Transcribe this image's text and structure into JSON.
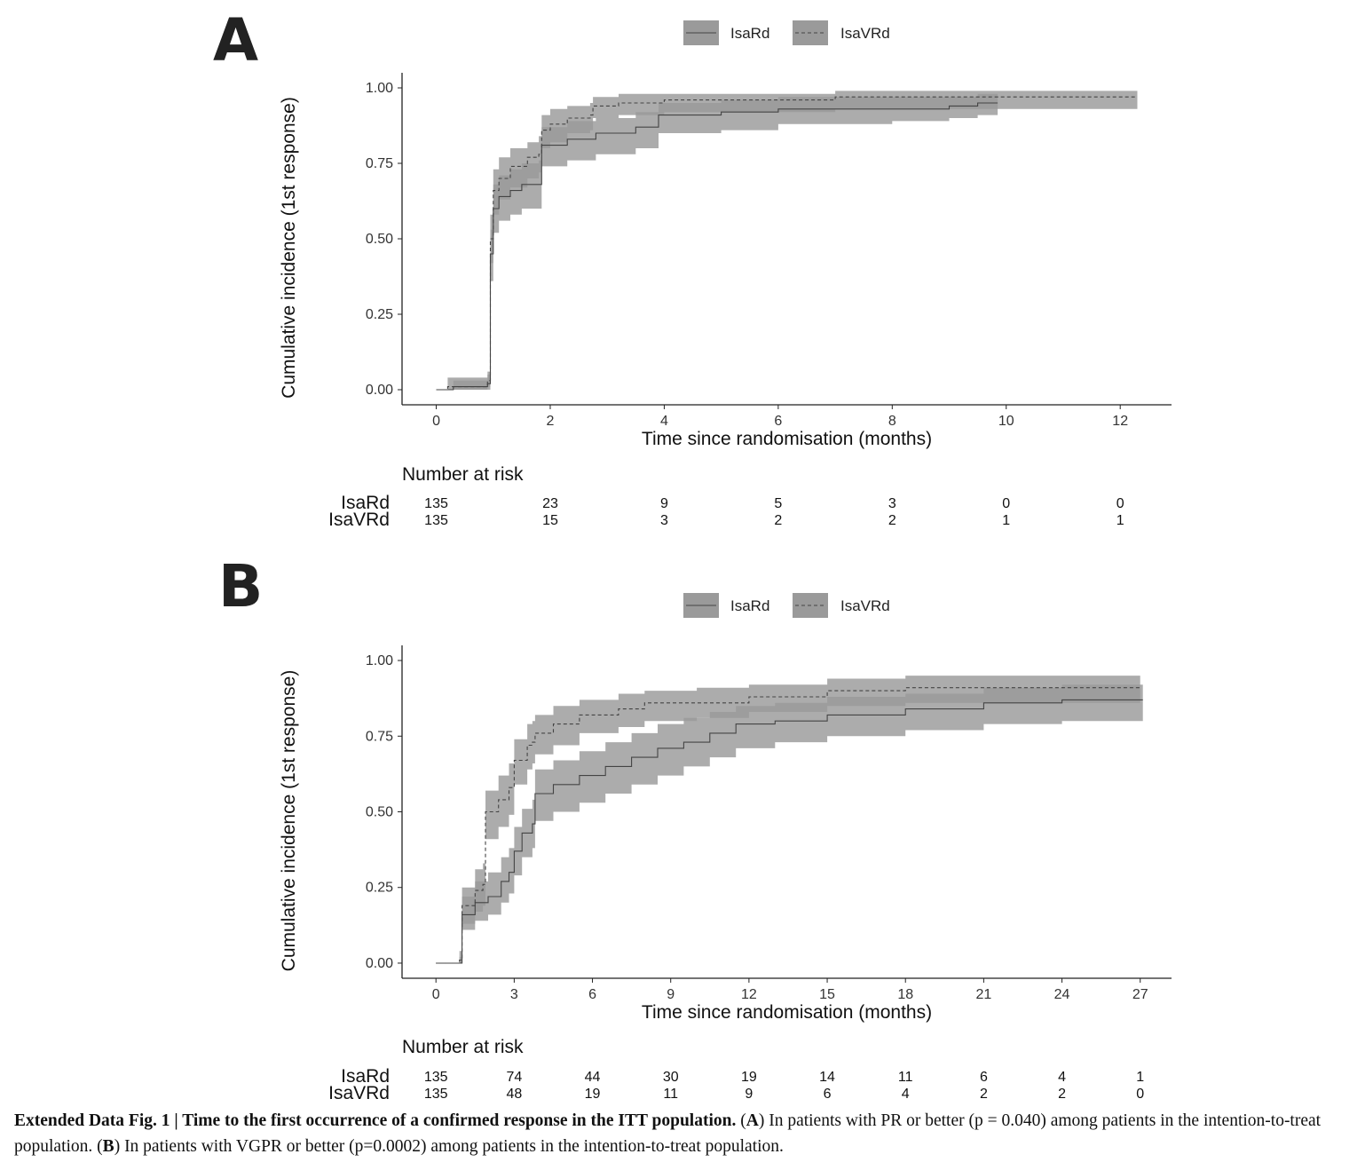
{
  "caption": {
    "label": "Extended Data Fig. 1 | Time to the first occurrence of a confirmed response in the ITT population.",
    "part_a_letter": "A",
    "part_a_text": "In patients with PR or better (p = 0.040) among patients in the intention-to-treat population.",
    "part_b_letter": "B",
    "part_b_text": "In patients with VGPR or better (p=0.0002) among patients in the intention-to-treat population."
  },
  "colors": {
    "band": "#a8a8a8",
    "overlap": "#7e7e7e",
    "line": "#444444"
  },
  "chart_data": [
    {
      "panel": "A",
      "type": "line",
      "xlabel": "Time since randomisation (months)",
      "ylabel": "Cumulative incidence (1st response)",
      "xlim": [
        -0.6,
        12.9
      ],
      "ylim": [
        -0.05,
        1.05
      ],
      "xticks": [
        0,
        2,
        4,
        6,
        8,
        10,
        12
      ],
      "yticks": [
        "0.00",
        "0.25",
        "0.50",
        "0.75",
        "1.00"
      ],
      "legend_position": "top",
      "series": [
        {
          "name": "IsaRd",
          "linestyle": "solid",
          "x": [
            0,
            0.3,
            0.9,
            0.95,
            1.0,
            1.1,
            1.3,
            1.5,
            1.8,
            1.85,
            2.3,
            2.8,
            3.5,
            3.9,
            5,
            6,
            7,
            8,
            9,
            9.5,
            9.85
          ],
          "y": [
            0,
            0.01,
            0.02,
            0.45,
            0.6,
            0.64,
            0.66,
            0.68,
            0.68,
            0.81,
            0.83,
            0.85,
            0.87,
            0.91,
            0.92,
            0.93,
            0.93,
            0.93,
            0.94,
            0.95,
            0.95
          ],
          "lower": [
            0,
            0.0,
            0.0,
            0.36,
            0.52,
            0.56,
            0.58,
            0.6,
            0.6,
            0.74,
            0.76,
            0.78,
            0.8,
            0.85,
            0.86,
            0.88,
            0.88,
            0.89,
            0.9,
            0.91,
            0.91
          ],
          "upper": [
            0,
            0.03,
            0.05,
            0.53,
            0.68,
            0.71,
            0.73,
            0.75,
            0.76,
            0.87,
            0.89,
            0.9,
            0.92,
            0.95,
            0.96,
            0.97,
            0.97,
            0.97,
            0.97,
            0.98,
            0.98
          ]
        },
        {
          "name": "IsaVRd",
          "linestyle": "dashed",
          "x": [
            0,
            0.2,
            0.9,
            0.95,
            1.0,
            1.1,
            1.3,
            1.6,
            1.8,
            1.85,
            2.0,
            2.3,
            2.7,
            2.75,
            3.2,
            4.0,
            7.0,
            12.3
          ],
          "y": [
            0,
            0.01,
            0.03,
            0.5,
            0.66,
            0.7,
            0.74,
            0.77,
            0.78,
            0.86,
            0.88,
            0.9,
            0.91,
            0.94,
            0.95,
            0.96,
            0.97,
            0.97
          ],
          "lower": [
            0,
            0.0,
            0.01,
            0.42,
            0.58,
            0.63,
            0.67,
            0.7,
            0.72,
            0.8,
            0.82,
            0.85,
            0.86,
            0.9,
            0.91,
            0.92,
            0.93,
            0.92
          ],
          "upper": [
            0,
            0.04,
            0.06,
            0.58,
            0.73,
            0.77,
            0.8,
            0.82,
            0.84,
            0.91,
            0.93,
            0.94,
            0.95,
            0.97,
            0.98,
            0.98,
            0.99,
            0.99
          ]
        }
      ],
      "risk_table": {
        "title": "Number at risk",
        "times": [
          0,
          2,
          4,
          6,
          8,
          10,
          12
        ],
        "rows": [
          {
            "label": "IsaRd",
            "values": [
              "135",
              "23",
              "9",
              "5",
              "3",
              "0",
              "0"
            ]
          },
          {
            "label": "IsaVRd",
            "values": [
              "135",
              "15",
              "3",
              "2",
              "2",
              "1",
              "1"
            ]
          }
        ]
      }
    },
    {
      "panel": "B",
      "type": "line",
      "xlabel": "Time since randomisation (months)",
      "ylabel": "Cumulative incidence (1st response)",
      "xlim": [
        -1.3,
        28.2
      ],
      "ylim": [
        -0.05,
        1.05
      ],
      "xticks": [
        0,
        3,
        6,
        9,
        12,
        15,
        18,
        21,
        24,
        27
      ],
      "yticks": [
        "0.00",
        "0.25",
        "0.50",
        "0.75",
        "1.00"
      ],
      "legend_position": "top",
      "series": [
        {
          "name": "IsaRd",
          "linestyle": "solid",
          "x": [
            0,
            0.9,
            1.0,
            1.5,
            2.0,
            2.5,
            2.8,
            3.0,
            3.3,
            3.7,
            3.8,
            4.5,
            5.5,
            6.5,
            7.5,
            8.5,
            9.5,
            10.5,
            11.5,
            13,
            15,
            18,
            21,
            24,
            27.1
          ],
          "y": [
            0,
            0.0,
            0.16,
            0.2,
            0.22,
            0.27,
            0.3,
            0.37,
            0.43,
            0.46,
            0.56,
            0.59,
            0.62,
            0.65,
            0.68,
            0.71,
            0.73,
            0.76,
            0.79,
            0.8,
            0.82,
            0.84,
            0.86,
            0.87,
            0.87
          ],
          "lower": [
            0,
            0.0,
            0.11,
            0.14,
            0.16,
            0.2,
            0.23,
            0.29,
            0.35,
            0.38,
            0.47,
            0.5,
            0.53,
            0.56,
            0.59,
            0.62,
            0.65,
            0.68,
            0.71,
            0.73,
            0.75,
            0.77,
            0.79,
            0.8,
            0.8
          ],
          "upper": [
            0,
            0.02,
            0.22,
            0.27,
            0.3,
            0.35,
            0.38,
            0.45,
            0.51,
            0.54,
            0.64,
            0.67,
            0.7,
            0.73,
            0.76,
            0.79,
            0.81,
            0.83,
            0.85,
            0.86,
            0.88,
            0.89,
            0.91,
            0.92,
            0.92
          ]
        },
        {
          "name": "IsaVRd",
          "linestyle": "dashed",
          "x": [
            0,
            0.9,
            1.0,
            1.5,
            1.8,
            1.9,
            2.4,
            2.8,
            3.0,
            3.5,
            3.7,
            3.8,
            4.5,
            5.5,
            7,
            8,
            10,
            12,
            15,
            18,
            21,
            24,
            27
          ],
          "y": [
            0,
            0.01,
            0.19,
            0.24,
            0.26,
            0.5,
            0.54,
            0.58,
            0.67,
            0.72,
            0.73,
            0.76,
            0.79,
            0.82,
            0.84,
            0.86,
            0.86,
            0.88,
            0.9,
            0.91,
            0.91,
            0.91,
            0.91
          ],
          "lower": [
            0,
            0.0,
            0.13,
            0.17,
            0.19,
            0.41,
            0.45,
            0.49,
            0.59,
            0.64,
            0.66,
            0.69,
            0.72,
            0.76,
            0.78,
            0.8,
            0.81,
            0.83,
            0.85,
            0.86,
            0.86,
            0.86,
            0.86
          ],
          "upper": [
            0,
            0.04,
            0.25,
            0.31,
            0.33,
            0.57,
            0.62,
            0.66,
            0.74,
            0.79,
            0.8,
            0.82,
            0.85,
            0.87,
            0.89,
            0.9,
            0.91,
            0.92,
            0.94,
            0.95,
            0.95,
            0.95,
            0.95
          ]
        }
      ],
      "risk_table": {
        "title": "Number at risk",
        "times": [
          0,
          3,
          6,
          9,
          12,
          15,
          18,
          21,
          24,
          27
        ],
        "rows": [
          {
            "label": "IsaRd",
            "values": [
              "135",
              "74",
              "44",
              "30",
              "19",
              "14",
              "11",
              "6",
              "4",
              "1"
            ]
          },
          {
            "label": "IsaVRd",
            "values": [
              "135",
              "48",
              "19",
              "11",
              "9",
              "6",
              "4",
              "2",
              "2",
              "0"
            ]
          }
        ]
      }
    }
  ]
}
